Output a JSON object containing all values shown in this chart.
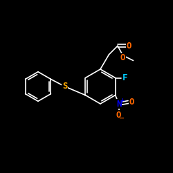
{
  "figsize": [
    2.5,
    2.5
  ],
  "dpi": 100,
  "background": "#000000",
  "bond_color": "#ffffff",
  "colors": {
    "C": "#ffffff",
    "O": "#ff6600",
    "N": "#0000ff",
    "F": "#00ccff",
    "S": "#ffaa00"
  },
  "font_size": 9,
  "font_size_small": 7.5
}
